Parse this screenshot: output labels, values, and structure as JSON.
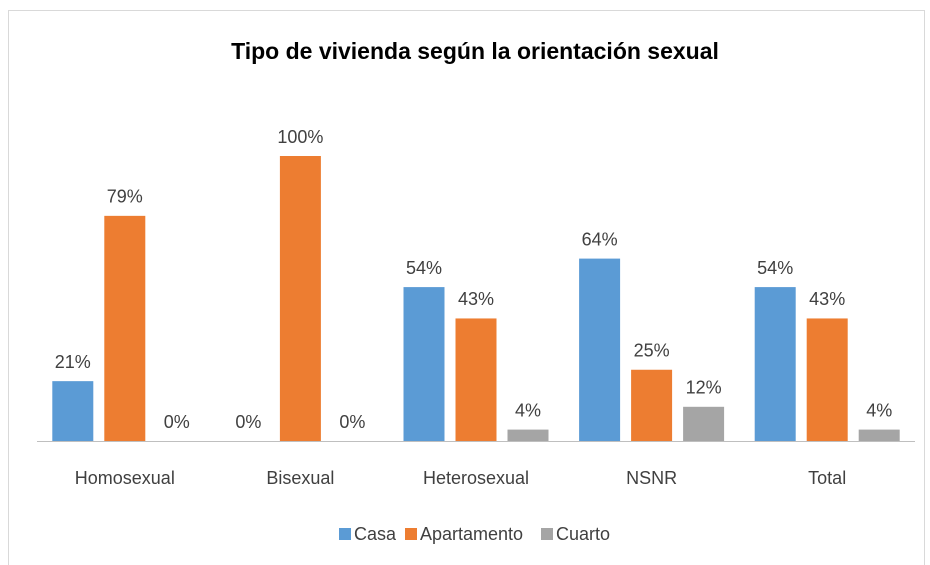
{
  "chart_data": {
    "type": "bar",
    "title": "Tipo de vivienda según la orientación sexual",
    "categories": [
      "Homosexual",
      "Bisexual",
      "Heterosexual",
      "NSNR",
      "Total"
    ],
    "series": [
      {
        "name": "Casa",
        "color": "#5b9bd5",
        "values": [
          21,
          0,
          54,
          64,
          54
        ],
        "value_labels": [
          "21%",
          "0%",
          "54%",
          "64%",
          "54%"
        ]
      },
      {
        "name": "Apartamento",
        "color": "#ed7d31",
        "values": [
          79,
          100,
          43,
          25,
          43
        ],
        "value_labels": [
          "79%",
          "100%",
          "43%",
          "25%",
          "43%"
        ]
      },
      {
        "name": "Cuarto",
        "color": "#a5a5a5",
        "values": [
          0,
          0,
          4,
          12,
          4
        ],
        "value_labels": [
          "0%",
          "0%",
          "4%",
          "12%",
          "4%"
        ]
      }
    ],
    "ylim": [
      0,
      100
    ],
    "legend": "bottom"
  }
}
